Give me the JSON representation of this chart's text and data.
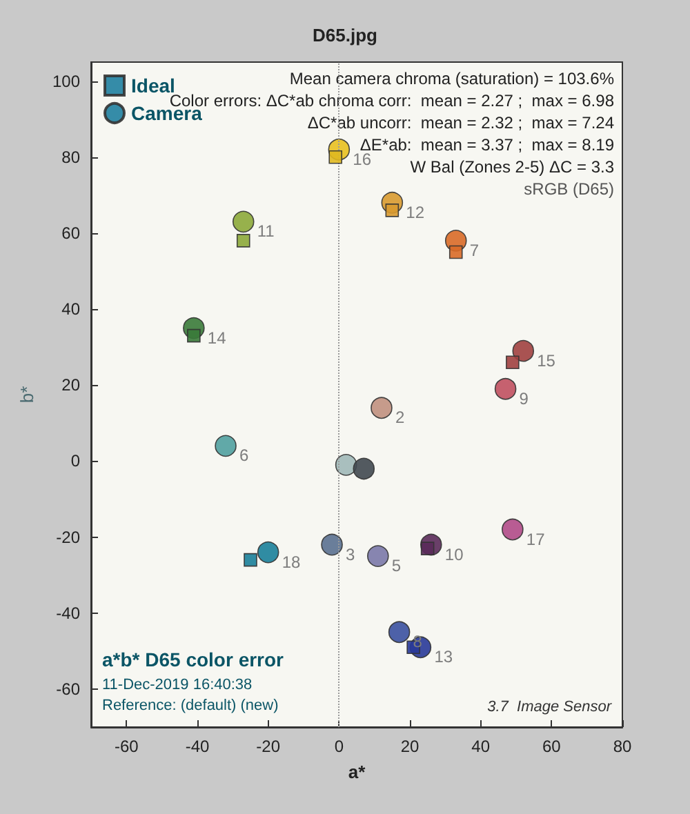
{
  "chart_data": {
    "type": "scatter",
    "title": "D65.jpg",
    "xlabel": "a*",
    "ylabel": "b*",
    "xlim": [
      -70,
      80
    ],
    "ylim": [
      -70,
      105
    ],
    "xticks": [
      -60,
      -40,
      -20,
      0,
      20,
      40,
      60,
      80
    ],
    "yticks": [
      -60,
      -40,
      -20,
      0,
      20,
      40,
      60,
      80,
      100
    ],
    "legend": "top left",
    "grid": false,
    "ref_lines": [
      {
        "axis": "x",
        "value": 0,
        "color": "#9a9a9a",
        "line_style": "dotted"
      }
    ],
    "annotations": [
      {
        "text": "16",
        "x": 0,
        "y": 82
      },
      {
        "text": "12",
        "x": 15,
        "y": 68
      },
      {
        "text": "11",
        "x": -27,
        "y": 63
      },
      {
        "text": "7",
        "x": 33,
        "y": 58
      },
      {
        "text": "14",
        "x": -41,
        "y": 35
      },
      {
        "text": "18",
        "x": -20,
        "y": -24
      },
      {
        "text": "3",
        "x": -2,
        "y": -22
      },
      {
        "text": "5",
        "x": 11,
        "y": -25
      },
      {
        "text": "10",
        "x": 26,
        "y": -22
      },
      {
        "text": "17",
        "x": 49,
        "y": -18
      },
      {
        "text": "8",
        "x": 17,
        "y": -45
      },
      {
        "text": "13",
        "x": 23,
        "y": -49
      },
      {
        "text": "15",
        "x": 52,
        "y": 29
      },
      {
        "text": "2",
        "x": 12,
        "y": 14
      },
      {
        "text": "6",
        "x": -32,
        "y": 4
      },
      {
        "text": "9",
        "x": 47,
        "y": 19
      },
      "Mean camera chroma (saturation) = 103.6%",
      "Color errors: ΔC*ab chroma corr:  mean = 2.27 ;  max = 6.98",
      "ΔC*ab uncorr:  mean = 2.32 ;  max = 7.24",
      "ΔE*ab:  mean = 3.37 ;  max = 8.19",
      "W Bal (Zones 2-5) ΔC = 3.3",
      "sRGB (D65)",
      "a*b* D65 color error",
      "11-Dec-2019 16:40:38",
      "Reference: (default) (new)",
      "3.7  Image Sensor"
    ],
    "series": [
      {
        "name": "Ideal",
        "marker": "square",
        "color": "#1f7fa0",
        "x": [
          -1,
          15,
          -27,
          33,
          -41,
          -25,
          25,
          21,
          49
        ],
        "values": [
          80,
          66,
          58,
          55,
          33,
          -26,
          -23,
          -49,
          26
        ],
        "colors": [
          "#e0b820",
          "#d89a30",
          "#8ca83a",
          "#d86a28",
          "#3a7a3a",
          "#1a7f9a",
          "#5a2a5a",
          "#283898",
          "#a04040"
        ]
      },
      {
        "name": "Camera",
        "marker": "circle",
        "color": "#1f7fa0",
        "x": [
          0,
          15,
          -27,
          33,
          -41,
          -20,
          -2,
          11,
          26,
          49,
          17,
          23,
          52,
          12,
          -32,
          47,
          2,
          7
        ],
        "values": [
          82,
          68,
          63,
          58,
          35,
          -24,
          -22,
          -25,
          -22,
          -18,
          -45,
          -49,
          29,
          14,
          4,
          19,
          -1,
          -2
        ],
        "colors": [
          "#e8c020",
          "#d89a30",
          "#8ca83a",
          "#d86a28",
          "#3a7a3a",
          "#1a7f9a",
          "#5a7090",
          "#7a78a8",
          "#5a2a5a",
          "#b04a88",
          "#3a50a0",
          "#283898",
          "#a04040",
          "#c09080",
          "#50a0a0",
          "#c05060",
          "#a0b8b8",
          "#404850"
        ]
      }
    ]
  }
}
